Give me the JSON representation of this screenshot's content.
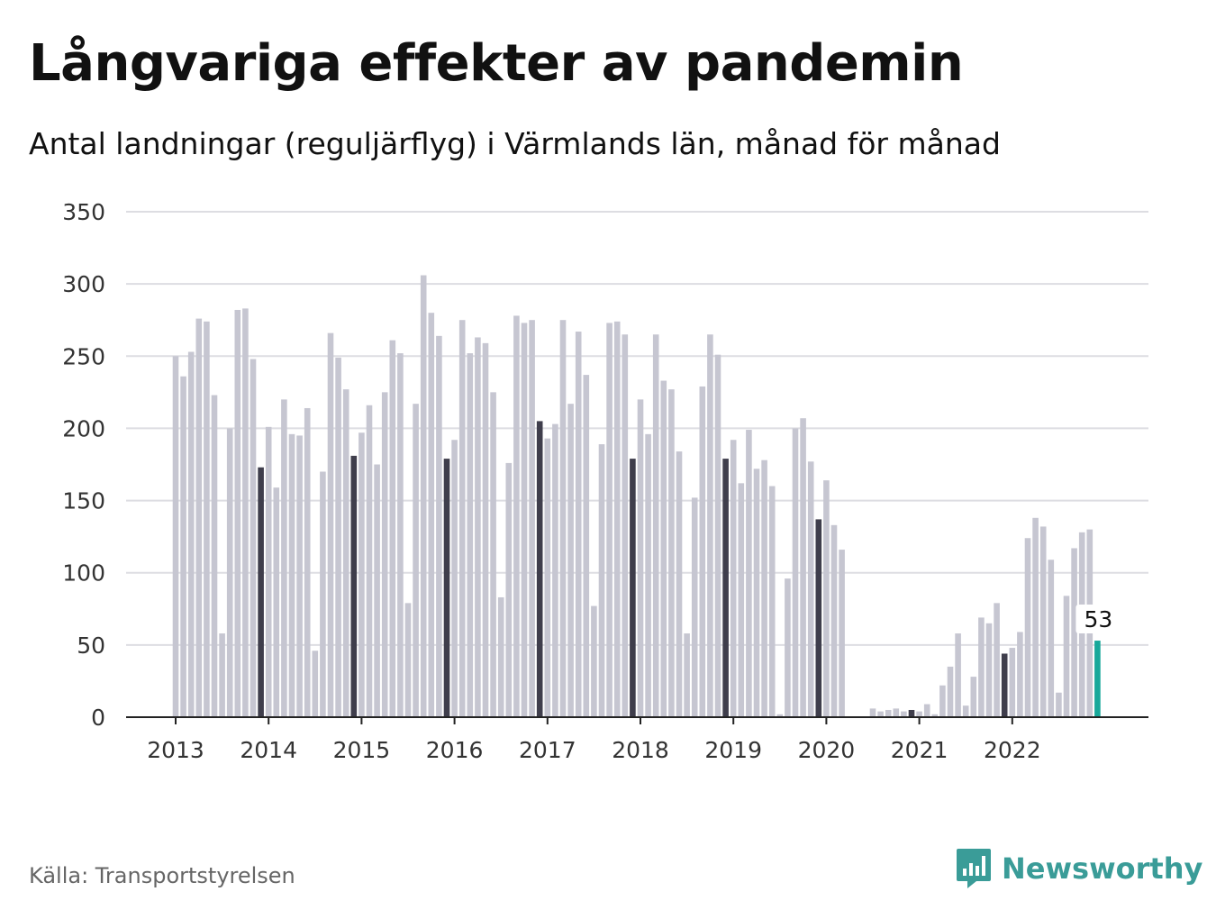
{
  "title": "Långvariga effekter av pandemin",
  "subtitle": "Antal landningar (reguljärflyg) i Värmlands län, månad för månad",
  "source": "Källa: Transportstyrelsen",
  "brand": "Newsworthy",
  "colors": {
    "bar": "#c6c6d1",
    "highlight": "#3f3e4c",
    "latest": "#17a89a",
    "grid": "#dddde2",
    "axis": "#222222"
  },
  "chart_data": {
    "type": "bar",
    "ylim": [
      0,
      350
    ],
    "yticks": [
      0,
      50,
      100,
      150,
      200,
      250,
      300,
      350
    ],
    "years": [
      "2013",
      "2014",
      "2015",
      "2016",
      "2017",
      "2018",
      "2019",
      "2020",
      "2021",
      "2022"
    ],
    "grid": true,
    "highlight_month": "December",
    "latest_label": "53",
    "values": [
      250,
      236,
      253,
      276,
      274,
      223,
      58,
      200,
      282,
      283,
      248,
      173,
      201,
      159,
      220,
      196,
      195,
      214,
      46,
      170,
      266,
      249,
      227,
      181,
      197,
      216,
      175,
      225,
      261,
      252,
      79,
      217,
      306,
      280,
      264,
      179,
      192,
      275,
      252,
      263,
      259,
      225,
      83,
      176,
      278,
      273,
      275,
      205,
      193,
      203,
      275,
      217,
      267,
      237,
      77,
      189,
      273,
      274,
      265,
      179,
      220,
      196,
      265,
      233,
      227,
      184,
      58,
      152,
      229,
      265,
      251,
      179,
      192,
      162,
      199,
      172,
      178,
      160,
      2,
      96,
      200,
      207,
      177,
      137,
      164,
      133,
      116,
      0,
      0,
      0,
      6,
      4,
      5,
      6,
      4,
      5,
      4,
      9,
      2,
      22,
      35,
      58,
      8,
      28,
      69,
      65,
      79,
      44,
      48,
      59,
      124,
      138,
      132,
      109,
      17,
      84,
      117,
      128,
      130,
      53
    ]
  }
}
